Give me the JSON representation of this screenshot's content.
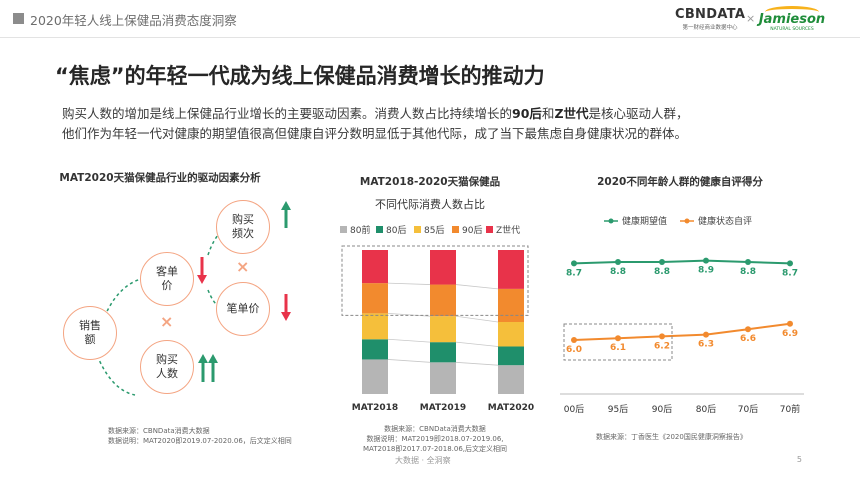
{
  "header": {
    "report_title": "2020年轻人线上保健品消费态度洞察",
    "logo_cbn_main": "CBNDATA",
    "logo_cbn_sub": "第一财经商业数据中心",
    "logo_sep": "×",
    "logo_jamieson_main": "Jamieson",
    "logo_jamieson_sub": "NATURAL SOURCES"
  },
  "headline": "“焦虑”的年轻一代成为线上保健品消费增长的推动力",
  "description": {
    "line1_pre": "购买人数的增加是线上保健品行业增长的主要驱动因素。消费人数占比持续增长的",
    "line1_b1": "90后",
    "line1_mid": "和",
    "line1_b2": "Z世代",
    "line1_post": "是核心驱动人群，",
    "line2": "他们作为年轻一代对健康的期望值很高但健康自评分数明显低于其他代际，成了当下最焦虑自身健康状况的群体。"
  },
  "left_panel": {
    "title": "MAT2020天猫保健品行业的驱动因素分析",
    "bubbles": {
      "sales": "销售\n额",
      "unit_price": "客单\n价",
      "buyers": "购买\n人数",
      "frequency": "购买\n频次",
      "item_price": "笔单价"
    },
    "symbol_cross": "×",
    "note_line1": "数据来源：CBNData消费大数据",
    "note_line2": "数据说明：MAT2020即2019.07-2020.06，后文定义相同"
  },
  "middle_panel": {
    "title_line1": "MAT2018-2020天猫保健品",
    "title_line2": "不同代际消费人数占比",
    "note_line1": "数据来源：CBNData消费大数据",
    "note_line2": "数据说明：MAT2019即2018.07-2019.06,",
    "note_line3": "MAT2018即2017.07-2018.06,后文定义相同"
  },
  "right_panel": {
    "title": "2020不同年龄人群的健康自评得分",
    "note": "数据来源：丁香医生《2020国民健康洞察报告》"
  },
  "footer": {
    "brand": "大数据 · 全洞察",
    "page_number": "5"
  },
  "colors": {
    "gen80pre": "#b5b5b5",
    "gen80": "#1f8f6b",
    "gen85": "#f5bf3b",
    "gen90": "#f28a2e",
    "genZ": "#e8334a",
    "expect_line": "#2b9a6e",
    "status_line": "#f28a2e",
    "up_arrow": "#2b9a6e",
    "down_arrow": "#e8334a"
  },
  "chart_data": [
    {
      "type": "bar",
      "stacked": true,
      "categories": [
        "MAT2018",
        "MAT2019",
        "MAT2020"
      ],
      "series": [
        {
          "name": "80前",
          "values": [
            24,
            22,
            20
          ]
        },
        {
          "name": "80后",
          "values": [
            14,
            14,
            13
          ]
        },
        {
          "name": "85后",
          "values": [
            18,
            18,
            17
          ]
        },
        {
          "name": "90后",
          "values": [
            21,
            22,
            23
          ]
        },
        {
          "name": "Z世代",
          "values": [
            23,
            24,
            27
          ]
        }
      ],
      "ylim": [
        0,
        100
      ],
      "legend": "top",
      "grid": false
    },
    {
      "type": "line",
      "categories": [
        "00后",
        "95后",
        "90后",
        "80后",
        "70后",
        "70前"
      ],
      "series": [
        {
          "name": "健康期望值",
          "values": [
            8.7,
            8.8,
            8.8,
            8.9,
            8.8,
            8.7
          ]
        },
        {
          "name": "健康状态自评",
          "values": [
            6.0,
            6.1,
            6.2,
            6.3,
            6.6,
            6.9
          ]
        }
      ],
      "legend": "top",
      "grid": false
    }
  ]
}
